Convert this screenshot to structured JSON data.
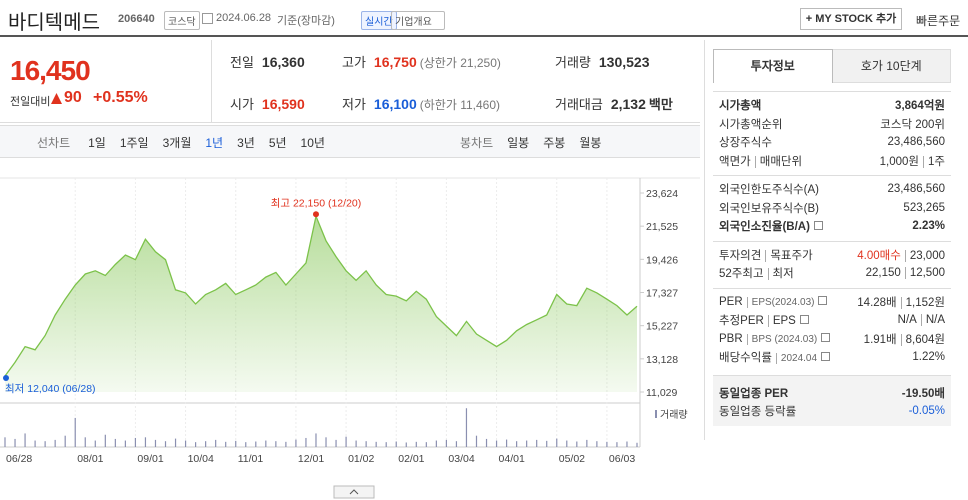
{
  "header": {
    "name": "바디텍메드",
    "code": "206640",
    "market": "코스닥",
    "date": "2024.06.28",
    "basis": "기준(장마감)",
    "realtime": "실시간",
    "overview": "기업개요",
    "my_stock": "+ MY STOCK 추가",
    "quick_order": "빠른주문"
  },
  "quote": {
    "price": "16,450",
    "change_label": "전일대비",
    "change": "90",
    "change_pct": "+0.55%",
    "color": "#e0321e"
  },
  "summary": [
    {
      "label": "전일",
      "value": "16,360",
      "color": "#333"
    },
    {
      "label": "고가",
      "value": "16,750",
      "note": "(상한가 21,250)",
      "color": "#e0321e"
    },
    {
      "label": "거래량",
      "value": "130,523",
      "color": "#333"
    },
    {
      "label": "시가",
      "value": "16,590",
      "color": "#e0321e"
    },
    {
      "label": "저가",
      "value": "16,100",
      "note": "(하한가 11,460)",
      "color": "#1a5ed8"
    },
    {
      "label": "거래대금",
      "value": "2,132",
      "note": "백만",
      "color": "#333"
    }
  ],
  "periods": {
    "line_label": "선차트",
    "line": [
      "1일",
      "1주일",
      "3개월",
      "1년",
      "3년",
      "5년",
      "10년"
    ],
    "selected": 3,
    "candle_label": "봉차트",
    "candle": [
      "일봉",
      "주봉",
      "월봉"
    ]
  },
  "chart_data": [
    {
      "type": "line",
      "color": "#7cc24a",
      "high_label": "최고 22,150 (12/20)",
      "low_label": "최저 12,040 (06/28)",
      "categories": [
        "06/28",
        null,
        null,
        null,
        null,
        null,
        null,
        "08/01",
        null,
        null,
        null,
        null,
        null,
        "09/01",
        null,
        null,
        null,
        null,
        "10/04",
        null,
        null,
        null,
        null,
        "11/01",
        null,
        null,
        null,
        null,
        null,
        "12/01",
        null,
        null,
        null,
        null,
        "01/02",
        null,
        null,
        null,
        null,
        "02/01",
        null,
        null,
        null,
        null,
        "03/04",
        null,
        null,
        null,
        null,
        "04/01",
        null,
        null,
        null,
        null,
        null,
        "05/02",
        null,
        null,
        null,
        null,
        "06/03",
        null,
        null,
        null
      ],
      "values": [
        12040,
        12900,
        13900,
        13700,
        14600,
        15900,
        16900,
        17800,
        18500,
        18700,
        18400,
        19100,
        19700,
        19400,
        20700,
        19900,
        19400,
        17500,
        17300,
        16600,
        17200,
        17500,
        17900,
        17200,
        17500,
        17800,
        18300,
        18600,
        17800,
        18500,
        19200,
        22150,
        20600,
        19600,
        18700,
        18100,
        18700,
        17800,
        17200,
        17100,
        16800,
        17400,
        16900,
        15800,
        15200,
        14600,
        15500,
        14700,
        14300,
        13900,
        14300,
        14900,
        15300,
        15600,
        15900,
        17200,
        16600,
        16500,
        17600,
        17300,
        16900,
        16500,
        15900,
        16450
      ],
      "ylim": [
        11029,
        23624
      ],
      "yticks": [
        {
          "value": 23624,
          "label": "23,624"
        },
        {
          "value": 21525,
          "label": "21,525"
        },
        {
          "value": 19426,
          "label": "19,426"
        },
        {
          "value": 17327,
          "label": "17,327"
        },
        {
          "value": 15227,
          "label": "15,227"
        },
        {
          "value": 13128,
          "label": "13,128"
        },
        {
          "value": 11029,
          "label": "11,029"
        }
      ]
    },
    {
      "type": "bar",
      "label": "거래량",
      "color": "#8a8fb0",
      "ylim": [
        0,
        1300000
      ],
      "values": [
        300000,
        250000,
        420000,
        200000,
        180000,
        220000,
        350000,
        900000,
        300000,
        200000,
        380000,
        250000,
        200000,
        280000,
        300000,
        220000,
        180000,
        260000,
        200000,
        150000,
        180000,
        220000,
        160000,
        190000,
        150000,
        170000,
        200000,
        180000,
        160000,
        230000,
        280000,
        420000,
        300000,
        220000,
        320000,
        200000,
        180000,
        160000,
        150000,
        170000,
        140000,
        160000,
        150000,
        200000,
        220000,
        180000,
        1200000,
        350000,
        250000,
        200000,
        230000,
        180000,
        200000,
        220000,
        190000,
        260000,
        200000,
        170000,
        220000,
        180000,
        160000,
        150000,
        170000,
        130523
      ]
    }
  ],
  "invest": {
    "tabs": [
      "투자정보",
      "호가 10단계"
    ],
    "selected": 0,
    "groups": [
      {
        "rows": [
          {
            "label": [
              "시가총액"
            ],
            "values": [
              "3,864억원"
            ],
            "bold": true
          },
          {
            "label": [
              "시가총액순위"
            ],
            "values": [
              "코스닥 200위"
            ]
          },
          {
            "label": [
              "상장주식수"
            ],
            "values": [
              "23,486,560"
            ]
          },
          {
            "label": [
              "액면가",
              "매매단위"
            ],
            "values": [
              "1,000원",
              "1주"
            ]
          }
        ]
      },
      {
        "rows": [
          {
            "label": [
              "외국인한도주식수(A)"
            ],
            "values": [
              "23,486,560"
            ]
          },
          {
            "label": [
              "외국인보유주식수(B)"
            ],
            "values": [
              "523,265"
            ]
          },
          {
            "label": [
              "외국인소진율(B/A)"
            ],
            "values": [
              "2.23%"
            ],
            "bold": true,
            "info": true
          }
        ]
      },
      {
        "rows": [
          {
            "label": [
              "투자의견",
              "목표주가"
            ],
            "values": [
              "4.00매수",
              "23,000"
            ],
            "value_colors": [
              "#e0321e",
              "#333"
            ]
          },
          {
            "label": [
              "52주최고",
              "최저"
            ],
            "values": [
              "22,150",
              "12,500"
            ]
          }
        ]
      },
      {
        "rows": [
          {
            "label": [
              "PER",
              "EPS(2024.03)"
            ],
            "values": [
              "14.28배",
              "1,152원"
            ],
            "info": true
          },
          {
            "label": [
              "추정PER",
              "EPS"
            ],
            "values": [
              "N/A",
              "N/A"
            ],
            "info": true
          },
          {
            "label": [
              "PBR",
              "BPS (2024.03)"
            ],
            "values": [
              "1.91배",
              "8,604원"
            ],
            "info": true
          },
          {
            "label": [
              "배당수익률",
              "2024.04"
            ],
            "values": [
              "1.22%"
            ],
            "info": true
          }
        ]
      },
      {
        "shaded": true,
        "rows": [
          {
            "label": [
              "동일업종 PER"
            ],
            "values": [
              "-19.50배"
            ],
            "bold": true
          },
          {
            "label": [
              "동일업종 등락률"
            ],
            "values": [
              "-0.05%"
            ],
            "value_colors": [
              "#1a5ed8"
            ]
          }
        ]
      }
    ]
  }
}
